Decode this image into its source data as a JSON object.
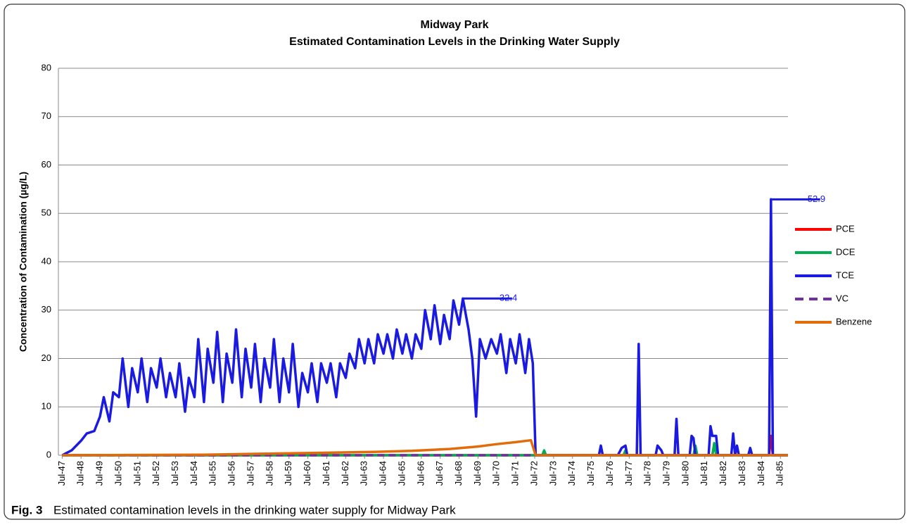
{
  "chart_data": {
    "type": "line",
    "title": "Midway Park",
    "subtitle": "Estimated Contamination Levels in the Drinking Water Supply",
    "y_label": "Concentration of Contamination (µg/L)",
    "caption_label": "Fig. 3",
    "caption": "Estimated contamination levels in the drinking water supply for Midway Park",
    "xlim": [
      1947.3,
      1985.9
    ],
    "ylim": [
      0,
      80
    ],
    "yticks": [
      0,
      10,
      20,
      30,
      40,
      50,
      60,
      70,
      80
    ],
    "grid": true,
    "legend": "right",
    "xticks": [
      {
        "value": 1947.5,
        "label": "Jul-47"
      },
      {
        "value": 1948.5,
        "label": "Jul-48"
      },
      {
        "value": 1949.5,
        "label": "Jul-49"
      },
      {
        "value": 1950.5,
        "label": "Jul-50"
      },
      {
        "value": 1951.5,
        "label": "Jul-51"
      },
      {
        "value": 1952.5,
        "label": "Jul-52"
      },
      {
        "value": 1953.5,
        "label": "Jul-53"
      },
      {
        "value": 1954.5,
        "label": "Jul-54"
      },
      {
        "value": 1955.5,
        "label": "Jul-55"
      },
      {
        "value": 1956.5,
        "label": "Jul-56"
      },
      {
        "value": 1957.5,
        "label": "Jul-57"
      },
      {
        "value": 1958.5,
        "label": "Jul-58"
      },
      {
        "value": 1959.5,
        "label": "Jul-59"
      },
      {
        "value": 1960.5,
        "label": "Jul-60"
      },
      {
        "value": 1961.5,
        "label": "Jul-61"
      },
      {
        "value": 1962.5,
        "label": "Jul-62"
      },
      {
        "value": 1963.5,
        "label": "Jul-63"
      },
      {
        "value": 1964.5,
        "label": "Jul-64"
      },
      {
        "value": 1965.5,
        "label": "Jul-65"
      },
      {
        "value": 1966.5,
        "label": "Jul-66"
      },
      {
        "value": 1967.5,
        "label": "Jul-67"
      },
      {
        "value": 1968.5,
        "label": "Jul-68"
      },
      {
        "value": 1969.5,
        "label": "Jul-69"
      },
      {
        "value": 1970.5,
        "label": "Jul-70"
      },
      {
        "value": 1971.5,
        "label": "Jul-71"
      },
      {
        "value": 1972.5,
        "label": "Jul-72"
      },
      {
        "value": 1973.5,
        "label": "Jul-73"
      },
      {
        "value": 1974.5,
        "label": "Jul-74"
      },
      {
        "value": 1975.5,
        "label": "Jul-75"
      },
      {
        "value": 1976.5,
        "label": "Jul-76"
      },
      {
        "value": 1977.5,
        "label": "Jul-77"
      },
      {
        "value": 1978.5,
        "label": "Jul-78"
      },
      {
        "value": 1979.5,
        "label": "Jul-79"
      },
      {
        "value": 1980.5,
        "label": "Jul-80"
      },
      {
        "value": 1981.5,
        "label": "Jul-81"
      },
      {
        "value": 1982.5,
        "label": "Jul-82"
      },
      {
        "value": 1983.5,
        "label": "Jul-83"
      },
      {
        "value": 1984.5,
        "label": "Jul-84"
      },
      {
        "value": 1985.5,
        "label": "Jul-85"
      }
    ],
    "series": [
      {
        "name": "PCE",
        "color": "#ff0000",
        "linestyle": "solid",
        "x": [
          1947.5,
          1984.9,
          1985.0,
          1985.1,
          1985.9
        ],
        "values": [
          0,
          0,
          4,
          0,
          0
        ]
      },
      {
        "name": "DCE",
        "color": "#00b050",
        "linestyle": "solid",
        "x": [
          1947.5,
          1972.9,
          1973.0,
          1973.1,
          1977.2,
          1977.3,
          1977.4,
          1980.9,
          1981.0,
          1981.1,
          1981.9,
          1982.0,
          1982.1,
          1985.9
        ],
        "values": [
          0,
          0,
          1,
          0,
          0,
          1,
          0,
          0,
          2,
          0,
          0,
          2.5,
          0,
          0
        ]
      },
      {
        "name": "TCE",
        "color": "#1a1ae0",
        "linestyle": "solid",
        "x": [
          1947.5,
          1948.0,
          1948.5,
          1948.8,
          1949.2,
          1949.5,
          1949.7,
          1950.0,
          1950.2,
          1950.5,
          1950.7,
          1951.0,
          1951.2,
          1951.5,
          1951.7,
          1952.0,
          1952.2,
          1952.5,
          1952.7,
          1953.0,
          1953.2,
          1953.5,
          1953.7,
          1954.0,
          1954.2,
          1954.5,
          1954.7,
          1955.0,
          1955.2,
          1955.5,
          1955.7,
          1956.0,
          1956.2,
          1956.5,
          1956.7,
          1957.0,
          1957.2,
          1957.5,
          1957.7,
          1958.0,
          1958.2,
          1958.5,
          1958.7,
          1959.0,
          1959.2,
          1959.5,
          1959.7,
          1960.0,
          1960.2,
          1960.5,
          1960.7,
          1961.0,
          1961.2,
          1961.5,
          1961.7,
          1962.0,
          1962.2,
          1962.5,
          1962.7,
          1963.0,
          1963.2,
          1963.5,
          1963.7,
          1964.0,
          1964.2,
          1964.5,
          1964.7,
          1965.0,
          1965.2,
          1965.5,
          1965.7,
          1966.0,
          1966.2,
          1966.5,
          1966.7,
          1967.0,
          1967.2,
          1967.5,
          1967.7,
          1968.0,
          1968.2,
          1968.5,
          1968.7,
          1969.0,
          1969.2,
          1969.4,
          1969.6,
          1969.9,
          1970.2,
          1970.5,
          1970.7,
          1971.0,
          1971.2,
          1971.5,
          1971.7,
          1972.0,
          1972.2,
          1972.4,
          1972.55,
          1975.9,
          1976.0,
          1976.1,
          1976.9,
          1977.1,
          1977.3,
          1977.4,
          1977.9,
          1978.0,
          1978.1,
          1978.9,
          1979.0,
          1979.2,
          1979.3,
          1979.9,
          1980.0,
          1980.1,
          1980.7,
          1980.8,
          1980.9,
          1981.0,
          1981.7,
          1981.8,
          1981.9,
          1982.1,
          1982.2,
          1982.9,
          1983.0,
          1983.1,
          1983.2,
          1983.3,
          1983.8,
          1983.9,
          1984.0,
          1984.9,
          1985.0,
          1985.1,
          1985.9
        ],
        "values": [
          0,
          1,
          3,
          4.5,
          5,
          8,
          12,
          7,
          13,
          12,
          20,
          10,
          18,
          13,
          20,
          11,
          18,
          14,
          20,
          12,
          17,
          12,
          19,
          9,
          16,
          12,
          24,
          11,
          22,
          15,
          25.5,
          11,
          21,
          15,
          26,
          12,
          22,
          14,
          23,
          11,
          20,
          14,
          24,
          11,
          20,
          13,
          23,
          10,
          17,
          13,
          19,
          11,
          19,
          15,
          19,
          12,
          19,
          16,
          21,
          18,
          24,
          19,
          24,
          19,
          25,
          21,
          25,
          20,
          26,
          21,
          25,
          20,
          25,
          22,
          30,
          24,
          31,
          23,
          29,
          24,
          32,
          27,
          32.4,
          26,
          20,
          8,
          24,
          20,
          24,
          21,
          25,
          17,
          24,
          19,
          25,
          17,
          24,
          19,
          0,
          0,
          2,
          0,
          0,
          1.5,
          2,
          0,
          0,
          23,
          0,
          0,
          2,
          1,
          0,
          0,
          7.5,
          0,
          0,
          4,
          3.5,
          0,
          0,
          6,
          4,
          4,
          0,
          0,
          4.5,
          0,
          2,
          0,
          0,
          1.5,
          0,
          0,
          52.9,
          0,
          0
        ]
      },
      {
        "name": "VC",
        "color": "#7030a0",
        "linestyle": "dashed",
        "x": [
          1947.5,
          1985.9
        ],
        "values": [
          0,
          0
        ]
      },
      {
        "name": "Benzene",
        "color": "#e36c0a",
        "linestyle": "solid",
        "x": [
          1947.5,
          1955.0,
          1958.0,
          1961.0,
          1964.0,
          1966.0,
          1968.0,
          1969.5,
          1970.5,
          1971.5,
          1972.3,
          1972.55,
          1985.9
        ],
        "values": [
          0,
          0.1,
          0.3,
          0.5,
          0.7,
          0.9,
          1.3,
          1.8,
          2.3,
          2.7,
          3.1,
          0,
          0
        ]
      }
    ],
    "annotations": [
      {
        "x": 1968.7,
        "value": 32.4
      },
      {
        "x": 1985.0,
        "value": 52.9
      }
    ]
  }
}
